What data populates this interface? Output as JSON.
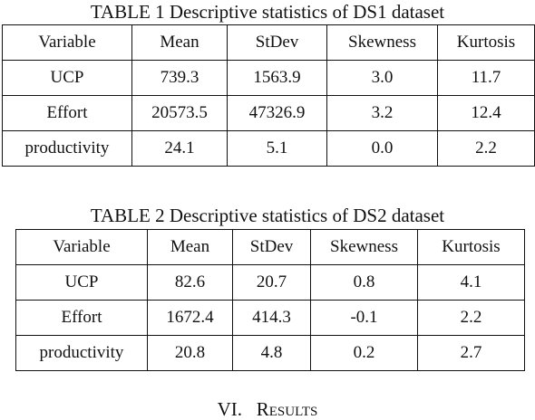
{
  "table1": {
    "caption": "TABLE 1 Descriptive statistics of DS1 dataset",
    "headers": [
      "Variable",
      "Mean",
      "StDev",
      "Skewness",
      "Kurtosis"
    ],
    "rows": [
      [
        "UCP",
        "739.3",
        "1563.9",
        "3.0",
        "11.7"
      ],
      [
        "Effort",
        "20573.5",
        "47326.9",
        "3.2",
        "12.4"
      ],
      [
        "productivity",
        "24.1",
        "5.1",
        "0.0",
        "2.2"
      ]
    ]
  },
  "table2": {
    "caption": "TABLE 2 Descriptive statistics of DS2 dataset",
    "headers": [
      "Variable",
      "Mean",
      "StDev",
      "Skewness",
      "Kurtosis"
    ],
    "rows": [
      [
        "UCP",
        "82.6",
        "20.7",
        "0.8",
        "4.1"
      ],
      [
        "Effort",
        "1672.4",
        "414.3",
        "-0.1",
        "2.2"
      ],
      [
        "productivity",
        "20.8",
        "4.8",
        "0.2",
        "2.7"
      ]
    ]
  },
  "section_heading": {
    "number": "VI.",
    "title": "Results"
  }
}
